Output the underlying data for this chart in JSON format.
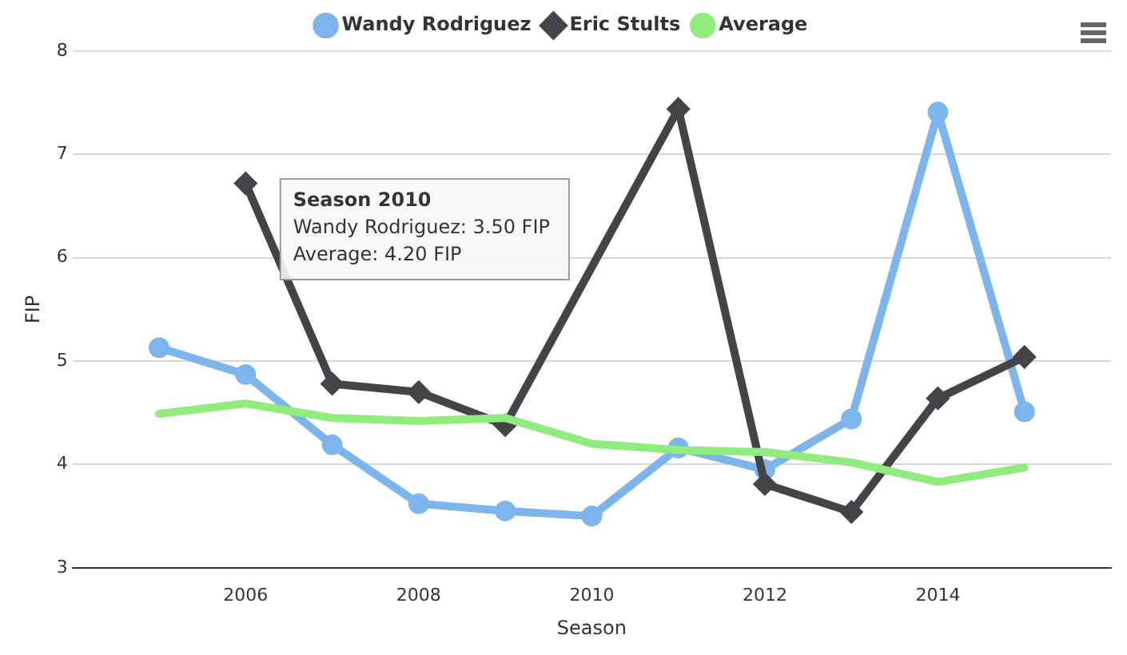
{
  "chart_data": {
    "type": "line",
    "xlabel": "Season",
    "ylabel": "FIP",
    "x": [
      2005,
      2006,
      2007,
      2008,
      2009,
      2010,
      2011,
      2012,
      2013,
      2014,
      2015
    ],
    "series": [
      {
        "name": "Wandy Rodriguez",
        "color": "#7cb5ec",
        "marker": "circle",
        "values": [
          5.13,
          4.87,
          4.19,
          3.62,
          3.55,
          3.5,
          4.16,
          3.95,
          4.44,
          7.41,
          4.51
        ]
      },
      {
        "name": "Eric Stults",
        "color": "#434348",
        "marker": "diamond",
        "values": [
          null,
          6.72,
          4.78,
          4.7,
          4.38,
          null,
          7.44,
          3.81,
          3.54,
          4.64,
          5.04
        ]
      },
      {
        "name": "Average",
        "color": "#90ed7d",
        "marker": "none",
        "values": [
          4.49,
          4.59,
          4.45,
          4.42,
          4.45,
          4.2,
          4.14,
          4.12,
          4.02,
          3.83,
          3.97
        ]
      }
    ],
    "xlim": [
      2004,
      2016
    ],
    "xticks": [
      2006,
      2008,
      2010,
      2012,
      2014
    ],
    "ylim": [
      3,
      8
    ],
    "yticks": [
      3,
      4,
      5,
      6,
      7,
      8
    ],
    "grid": "y",
    "legend": "top",
    "annotations": [
      "Season 2010",
      "Wandy Rodriguez: 3.50 FIP",
      "Average: 4.20 FIP"
    ]
  }
}
